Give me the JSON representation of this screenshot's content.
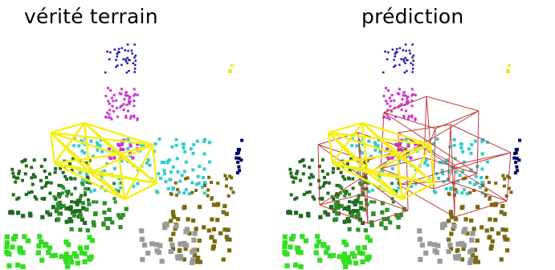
{
  "panels": [
    {
      "title": "vérité terrain"
    },
    {
      "title": "prédiction"
    }
  ],
  "colors": {
    "truth_box": "#f5ef1a",
    "pred_box": "#c03a3a",
    "points": [
      "#1a1aa8",
      "#cc33cc",
      "#33cccc",
      "#1f6b1f",
      "#2e8f2e",
      "#33dd22",
      "#7a6a10",
      "#9a9a9a",
      "#000066",
      "#8a1a1a"
    ]
  }
}
